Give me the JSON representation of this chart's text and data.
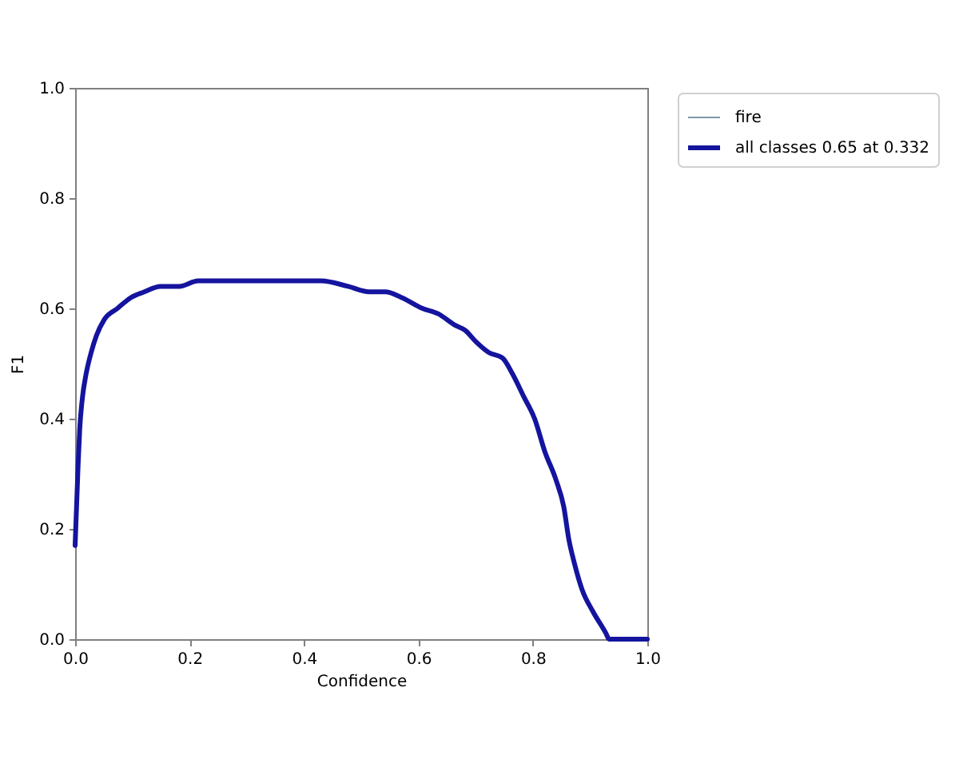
{
  "chart_data": {
    "type": "line",
    "xlabel": "Confidence",
    "ylabel": "F1",
    "x": [
      0,
      0.005,
      0.008,
      0.013,
      0.019,
      0.028,
      0.037,
      0.051,
      0.074,
      0.098,
      0.121,
      0.149,
      0.182,
      0.215,
      0.263,
      0.3,
      0.332,
      0.393,
      0.43,
      0.477,
      0.514,
      0.542,
      0.57,
      0.607,
      0.635,
      0.663,
      0.682,
      0.7,
      0.723,
      0.747,
      0.765,
      0.784,
      0.803,
      0.821,
      0.84,
      0.854,
      0.863,
      0.872,
      0.886,
      0.905,
      0.928,
      0.933,
      1.0
    ],
    "series": [
      {
        "name": "fire",
        "color": "#7f98a6",
        "values": [
          null,
          null,
          null,
          null,
          null,
          null,
          null,
          null,
          null,
          null,
          null,
          null,
          null,
          null,
          null,
          null,
          null,
          null,
          null,
          null,
          null,
          null,
          null,
          null,
          null,
          null,
          null,
          null,
          null,
          null,
          null,
          null,
          null,
          null,
          null,
          null,
          null,
          null,
          null,
          null,
          null,
          null,
          null
        ]
      },
      {
        "name": "all classes 0.65 at 0.332",
        "color": "#14149e",
        "values": [
          0.17,
          0.31,
          0.38,
          0.44,
          0.48,
          0.52,
          0.55,
          0.58,
          0.6,
          0.62,
          0.63,
          0.64,
          0.64,
          0.65,
          0.65,
          0.65,
          0.65,
          0.65,
          0.65,
          0.64,
          0.63,
          0.63,
          0.62,
          0.6,
          0.59,
          0.57,
          0.56,
          0.54,
          0.52,
          0.51,
          0.48,
          0.44,
          0.4,
          0.34,
          0.29,
          0.24,
          0.18,
          0.14,
          0.09,
          0.05,
          0.01,
          0,
          0
        ]
      }
    ],
    "xlim": [
      0,
      1
    ],
    "ylim": [
      0,
      1
    ],
    "xticks": [
      {
        "value": 0,
        "label": "0.0"
      },
      0.2,
      0.4,
      0.6,
      0.8,
      {
        "value": 1,
        "label": "1.0"
      }
    ],
    "yticks": [
      {
        "value": 0,
        "label": "0.0"
      },
      0.2,
      0.4,
      0.6,
      0.8,
      {
        "value": 1,
        "label": "1.0"
      }
    ],
    "legend": "top right"
  }
}
